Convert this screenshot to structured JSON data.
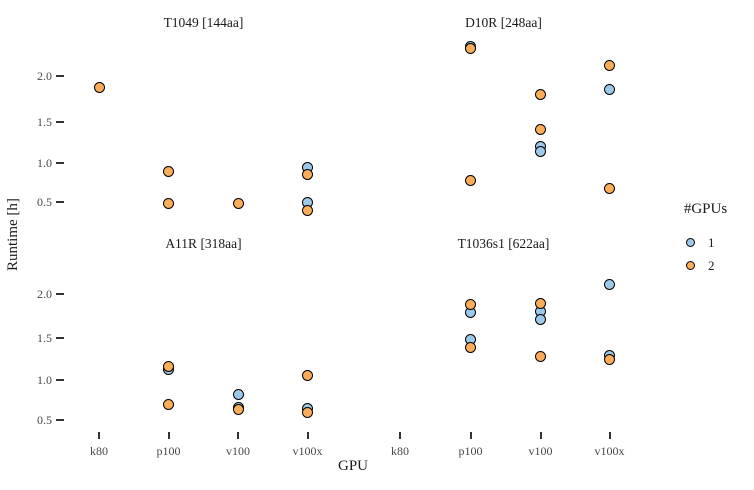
{
  "chart_data": {
    "type": "scatter",
    "title": "",
    "xlabel": "GPU",
    "ylabel": "Runtime [h]",
    "x_categories": [
      "k80",
      "p100",
      "v100",
      "v100x"
    ],
    "y_ticks": [
      "2.0",
      "1.5",
      "1.0",
      "0.5"
    ],
    "legend": {
      "title": "#GPUs",
      "entries": [
        {
          "label": "1",
          "color": "#9DC9E8"
        },
        {
          "label": "2",
          "color": "#FBAD59"
        }
      ]
    },
    "point_outline_color": "#000000",
    "facets": [
      {
        "title": "T1049 [144aa]",
        "row": 0,
        "col": 0,
        "points": [
          {
            "gpu": "k80",
            "gpus": 2,
            "runtime_h": 1.87
          },
          {
            "gpu": "p100",
            "gpus": 2,
            "runtime_h": 0.89
          },
          {
            "gpu": "p100",
            "gpus": 2,
            "runtime_h": 0.47
          },
          {
            "gpu": "v100",
            "gpus": 2,
            "runtime_h": 0.48
          },
          {
            "gpu": "v100x",
            "gpus": 1,
            "runtime_h": 0.95
          },
          {
            "gpu": "v100x",
            "gpus": 2,
            "runtime_h": 0.85
          },
          {
            "gpu": "v100x",
            "gpus": 1,
            "runtime_h": 0.49
          },
          {
            "gpu": "v100x",
            "gpus": 2,
            "runtime_h": 0.38
          }
        ]
      },
      {
        "title": "D10R [248aa]",
        "row": 0,
        "col": 1,
        "points": [
          {
            "gpu": "p100",
            "gpus": 1,
            "runtime_h": 2.31
          },
          {
            "gpu": "p100",
            "gpus": 2,
            "runtime_h": 2.29
          },
          {
            "gpu": "p100",
            "gpus": 2,
            "runtime_h": 0.78
          },
          {
            "gpu": "v100",
            "gpus": 2,
            "runtime_h": 1.79
          },
          {
            "gpu": "v100",
            "gpus": 2,
            "runtime_h": 1.41
          },
          {
            "gpu": "v100",
            "gpus": 1,
            "runtime_h": 1.2
          },
          {
            "gpu": "v100",
            "gpus": 1,
            "runtime_h": 1.14
          },
          {
            "gpu": "v100x",
            "gpus": 2,
            "runtime_h": 2.11
          },
          {
            "gpu": "v100x",
            "gpus": 1,
            "runtime_h": 1.85
          },
          {
            "gpu": "v100x",
            "gpus": 2,
            "runtime_h": 0.67
          }
        ]
      },
      {
        "title": "A11R [318aa]",
        "row": 1,
        "col": 0,
        "points": [
          {
            "gpu": "p100",
            "gpus": 2,
            "runtime_h": 1.16
          },
          {
            "gpu": "p100",
            "gpus": 1,
            "runtime_h": 1.12
          },
          {
            "gpu": "p100",
            "gpus": 2,
            "runtime_h": 0.69
          },
          {
            "gpu": "v100",
            "gpus": 1,
            "runtime_h": 0.82
          },
          {
            "gpu": "v100",
            "gpus": 1,
            "runtime_h": 0.66
          },
          {
            "gpu": "v100",
            "gpus": 2,
            "runtime_h": 0.63
          },
          {
            "gpu": "v100x",
            "gpus": 2,
            "runtime_h": 1.05
          },
          {
            "gpu": "v100x",
            "gpus": 1,
            "runtime_h": 0.65
          },
          {
            "gpu": "v100x",
            "gpus": 2,
            "runtime_h": 0.59
          }
        ]
      },
      {
        "title": "T1036s1 [622aa]",
        "row": 1,
        "col": 1,
        "points": [
          {
            "gpu": "p100",
            "gpus": 2,
            "runtime_h": 1.88
          },
          {
            "gpu": "p100",
            "gpus": 1,
            "runtime_h": 1.79
          },
          {
            "gpu": "p100",
            "gpus": 1,
            "runtime_h": 1.49
          },
          {
            "gpu": "p100",
            "gpus": 2,
            "runtime_h": 1.39
          },
          {
            "gpu": "v100",
            "gpus": 2,
            "runtime_h": 1.89
          },
          {
            "gpu": "v100",
            "gpus": 1,
            "runtime_h": 1.8
          },
          {
            "gpu": "v100",
            "gpus": 1,
            "runtime_h": 1.71
          },
          {
            "gpu": "v100",
            "gpus": 2,
            "runtime_h": 1.28
          },
          {
            "gpu": "v100x",
            "gpus": 1,
            "runtime_h": 2.11
          },
          {
            "gpu": "v100x",
            "gpus": 1,
            "runtime_h": 1.29
          },
          {
            "gpu": "v100x",
            "gpus": 2,
            "runtime_h": 1.25
          }
        ]
      }
    ]
  }
}
